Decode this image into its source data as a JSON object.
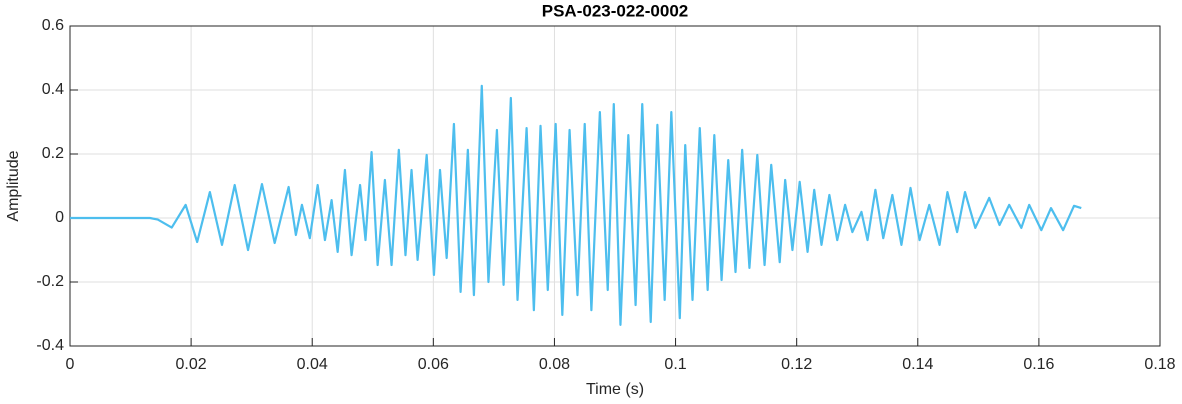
{
  "chart_data": {
    "type": "line",
    "title": "PSA-023-022-0002",
    "xlabel": "Time (s)",
    "ylabel": "Amplitude",
    "color": "#4dbeee",
    "grid": true,
    "xlim": [
      0,
      0.18
    ],
    "xticks": [
      0,
      0.02,
      0.04,
      0.06,
      0.08,
      0.1,
      0.12,
      0.14,
      0.16,
      0.18
    ],
    "ylim": [
      -0.4,
      0.6
    ],
    "yticks": [
      -0.4,
      -0.2,
      0,
      0.2,
      0.4,
      0.6
    ],
    "x": [
      0,
      0.0132,
      0.0145,
      0.0168,
      0.0191,
      0.021,
      0.0231,
      0.0251,
      0.0272,
      0.0294,
      0.0317,
      0.0338,
      0.0361,
      0.0373,
      0.0383,
      0.0396,
      0.0409,
      0.0421,
      0.0432,
      0.0442,
      0.0454,
      0.0465,
      0.0479,
      0.0488,
      0.0498,
      0.0508,
      0.052,
      0.0531,
      0.0543,
      0.0554,
      0.0564,
      0.0574,
      0.0589,
      0.0601,
      0.0611,
      0.0622,
      0.0634,
      0.0645,
      0.0657,
      0.0667,
      0.068,
      0.0691,
      0.0705,
      0.0716,
      0.0728,
      0.0739,
      0.0754,
      0.0766,
      0.0777,
      0.0789,
      0.0802,
      0.0813,
      0.0825,
      0.0838,
      0.085,
      0.0861,
      0.0875,
      0.0888,
      0.0898,
      0.0909,
      0.0922,
      0.0934,
      0.0945,
      0.0959,
      0.097,
      0.0982,
      0.0993,
      0.1007,
      0.1016,
      0.1028,
      0.104,
      0.1053,
      0.1064,
      0.1076,
      0.1087,
      0.1099,
      0.111,
      0.1122,
      0.1135,
      0.1147,
      0.1158,
      0.1172,
      0.1181,
      0.1193,
      0.1205,
      0.1218,
      0.1229,
      0.1241,
      0.1254,
      0.1267,
      0.128,
      0.1292,
      0.1307,
      0.1317,
      0.133,
      0.1343,
      0.1358,
      0.1373,
      0.1388,
      0.1403,
      0.1419,
      0.1436,
      0.1449,
      0.1465,
      0.1478,
      0.1495,
      0.1518,
      0.1535,
      0.1551,
      0.1571,
      0.1584,
      0.1604,
      0.162,
      0.164,
      0.1658,
      0.167
    ],
    "values": [
      0,
      0,
      -0.005,
      -0.03,
      0.041,
      -0.075,
      0.081,
      -0.084,
      0.103,
      -0.1,
      0.106,
      -0.078,
      0.097,
      -0.053,
      0.041,
      -0.063,
      0.103,
      -0.069,
      0.056,
      -0.106,
      0.15,
      -0.116,
      0.103,
      -0.069,
      0.206,
      -0.147,
      0.119,
      -0.147,
      0.213,
      -0.116,
      0.15,
      -0.131,
      0.197,
      -0.178,
      0.15,
      -0.125,
      0.294,
      -0.231,
      0.213,
      -0.241,
      0.413,
      -0.2,
      0.275,
      -0.209,
      0.375,
      -0.256,
      0.281,
      -0.288,
      0.288,
      -0.225,
      0.294,
      -0.303,
      0.275,
      -0.241,
      0.294,
      -0.288,
      0.331,
      -0.225,
      0.356,
      -0.334,
      0.259,
      -0.272,
      0.356,
      -0.325,
      0.291,
      -0.256,
      0.331,
      -0.313,
      0.228,
      -0.256,
      0.281,
      -0.225,
      0.259,
      -0.194,
      0.181,
      -0.169,
      0.213,
      -0.156,
      0.197,
      -0.147,
      0.166,
      -0.138,
      0.119,
      -0.1,
      0.113,
      -0.106,
      0.088,
      -0.084,
      0.072,
      -0.069,
      0.041,
      -0.044,
      0.019,
      -0.069,
      0.088,
      -0.063,
      0.072,
      -0.084,
      0.094,
      -0.069,
      0.041,
      -0.084,
      0.081,
      -0.044,
      0.081,
      -0.031,
      0.063,
      -0.022,
      0.041,
      -0.031,
      0.041,
      -0.038,
      0.031,
      -0.038,
      0.038,
      0.031
    ]
  }
}
